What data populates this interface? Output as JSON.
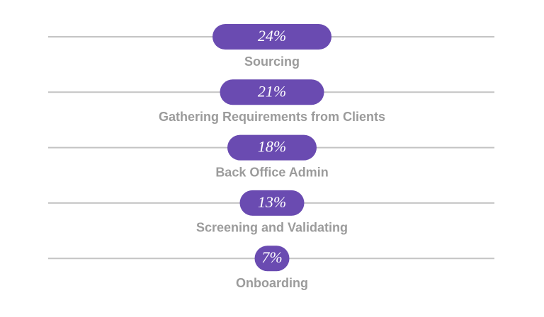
{
  "chart_data": {
    "type": "bar",
    "categories": [
      "Sourcing",
      "Gathering Requirements from Clients",
      "Back Office Admin",
      "Screening and Validating",
      "Onboarding"
    ],
    "values": [
      24,
      21,
      18,
      13,
      7
    ],
    "value_labels": [
      "24%",
      "21%",
      "18%",
      "13%",
      "7%"
    ],
    "color": "#6a4bb1"
  }
}
